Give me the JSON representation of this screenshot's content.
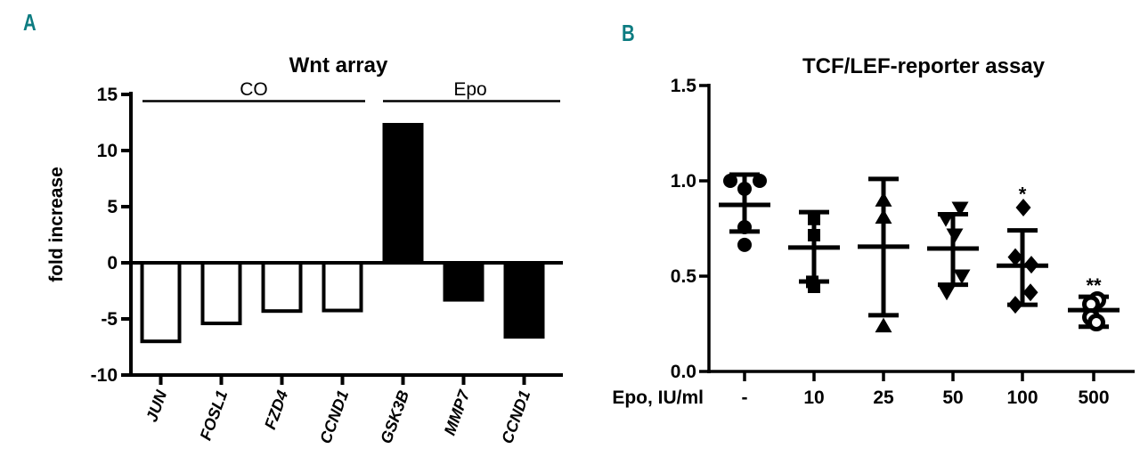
{
  "figure": {
    "panel_a_label": "A",
    "panel_b_label": "B",
    "accent_color": "#0d7c81",
    "ink_color": "#000000"
  },
  "chart_data": [
    {
      "type": "bar",
      "title": "Wnt array",
      "xlabel": "",
      "ylabel": "fold increase",
      "ylim": [
        -10,
        15
      ],
      "yticks": [
        15,
        10,
        5,
        0,
        -5,
        -10
      ],
      "grid": false,
      "categories": [
        "JUN",
        "FOSL1",
        "FZD4",
        "CCND1",
        "GSK3B",
        "MMP7",
        "CCND1"
      ],
      "values": [
        -7.0,
        -5.4,
        -4.3,
        -4.25,
        12.3,
        -3.3,
        -6.6
      ],
      "bar_fills": [
        "#ffffff",
        "#ffffff",
        "#ffffff",
        "#ffffff",
        "#000000",
        "#000000",
        "#000000"
      ],
      "groups": [
        {
          "label": "CO",
          "first_category": "JUN",
          "last_category": "CCND1"
        },
        {
          "label": "Epo",
          "first_category": "GSK3B",
          "last_category": "CCND1"
        }
      ]
    },
    {
      "type": "scatter",
      "title": "TCF/LEF-reporter assay",
      "xlabel": "Epo, IU/ml",
      "ylabel": "",
      "ylim": [
        0.0,
        1.5
      ],
      "yticks": [
        "1.5",
        "1.0",
        "0.5",
        "0.0"
      ],
      "grid": false,
      "categories": [
        "-",
        "10",
        "25",
        "50",
        "100",
        "500"
      ],
      "error_bar_style": "mean_with_sd_caps",
      "series": [
        {
          "x_label": "-",
          "marker": "circle-filled",
          "points": [
            [
              -16,
              1.0
            ],
            [
              17,
              1.0
            ],
            [
              0,
              0.958
            ],
            [
              0,
              0.757
            ],
            [
              0,
              0.664
            ]
          ],
          "mean": 0.874,
          "err_low": 0.734,
          "err_high": 1.033,
          "annotation": "",
          "annotation_y": null
        },
        {
          "x_label": "10",
          "marker": "square-filled",
          "points": [
            [
              0,
              0.8
            ],
            [
              0,
              0.715
            ],
            [
              -2,
              0.47
            ],
            [
              0,
              0.444
            ]
          ],
          "mean": 0.65,
          "err_low": 0.472,
          "err_high": 0.836,
          "annotation": "",
          "annotation_y": null
        },
        {
          "x_label": "25",
          "marker": "triangle-up-filled",
          "points": [
            [
              0,
              0.9
            ],
            [
              0,
              0.81
            ],
            [
              0,
              0.24
            ]
          ],
          "mean": 0.655,
          "err_low": 0.295,
          "err_high": 1.01,
          "annotation": "",
          "annotation_y": null
        },
        {
          "x_label": "50",
          "marker": "triangle-down-filled",
          "points": [
            [
              8,
              0.855
            ],
            [
              -8,
              0.8
            ],
            [
              2,
              0.715
            ],
            [
              10,
              0.5
            ],
            [
              -7,
              0.415
            ]
          ],
          "mean": 0.645,
          "err_low": 0.455,
          "err_high": 0.825,
          "annotation": "",
          "annotation_y": null
        },
        {
          "x_label": "100",
          "marker": "diamond-filled",
          "points": [
            [
              1,
              0.86
            ],
            [
              -8,
              0.6
            ],
            [
              10,
              0.56
            ],
            [
              9,
              0.415
            ],
            [
              -8,
              0.35
            ]
          ],
          "mean": 0.555,
          "err_low": 0.35,
          "err_high": 0.74,
          "annotation": "*",
          "annotation_y": 0.97
        },
        {
          "x_label": "500",
          "marker": "circle-open",
          "points": [
            [
              4,
              0.374
            ],
            [
              -3,
              0.353
            ],
            [
              -3,
              0.285
            ],
            [
              3,
              0.257
            ]
          ],
          "mean": 0.322,
          "err_low": 0.235,
          "err_high": 0.392,
          "annotation": "**",
          "annotation_y": 0.49
        }
      ]
    }
  ]
}
